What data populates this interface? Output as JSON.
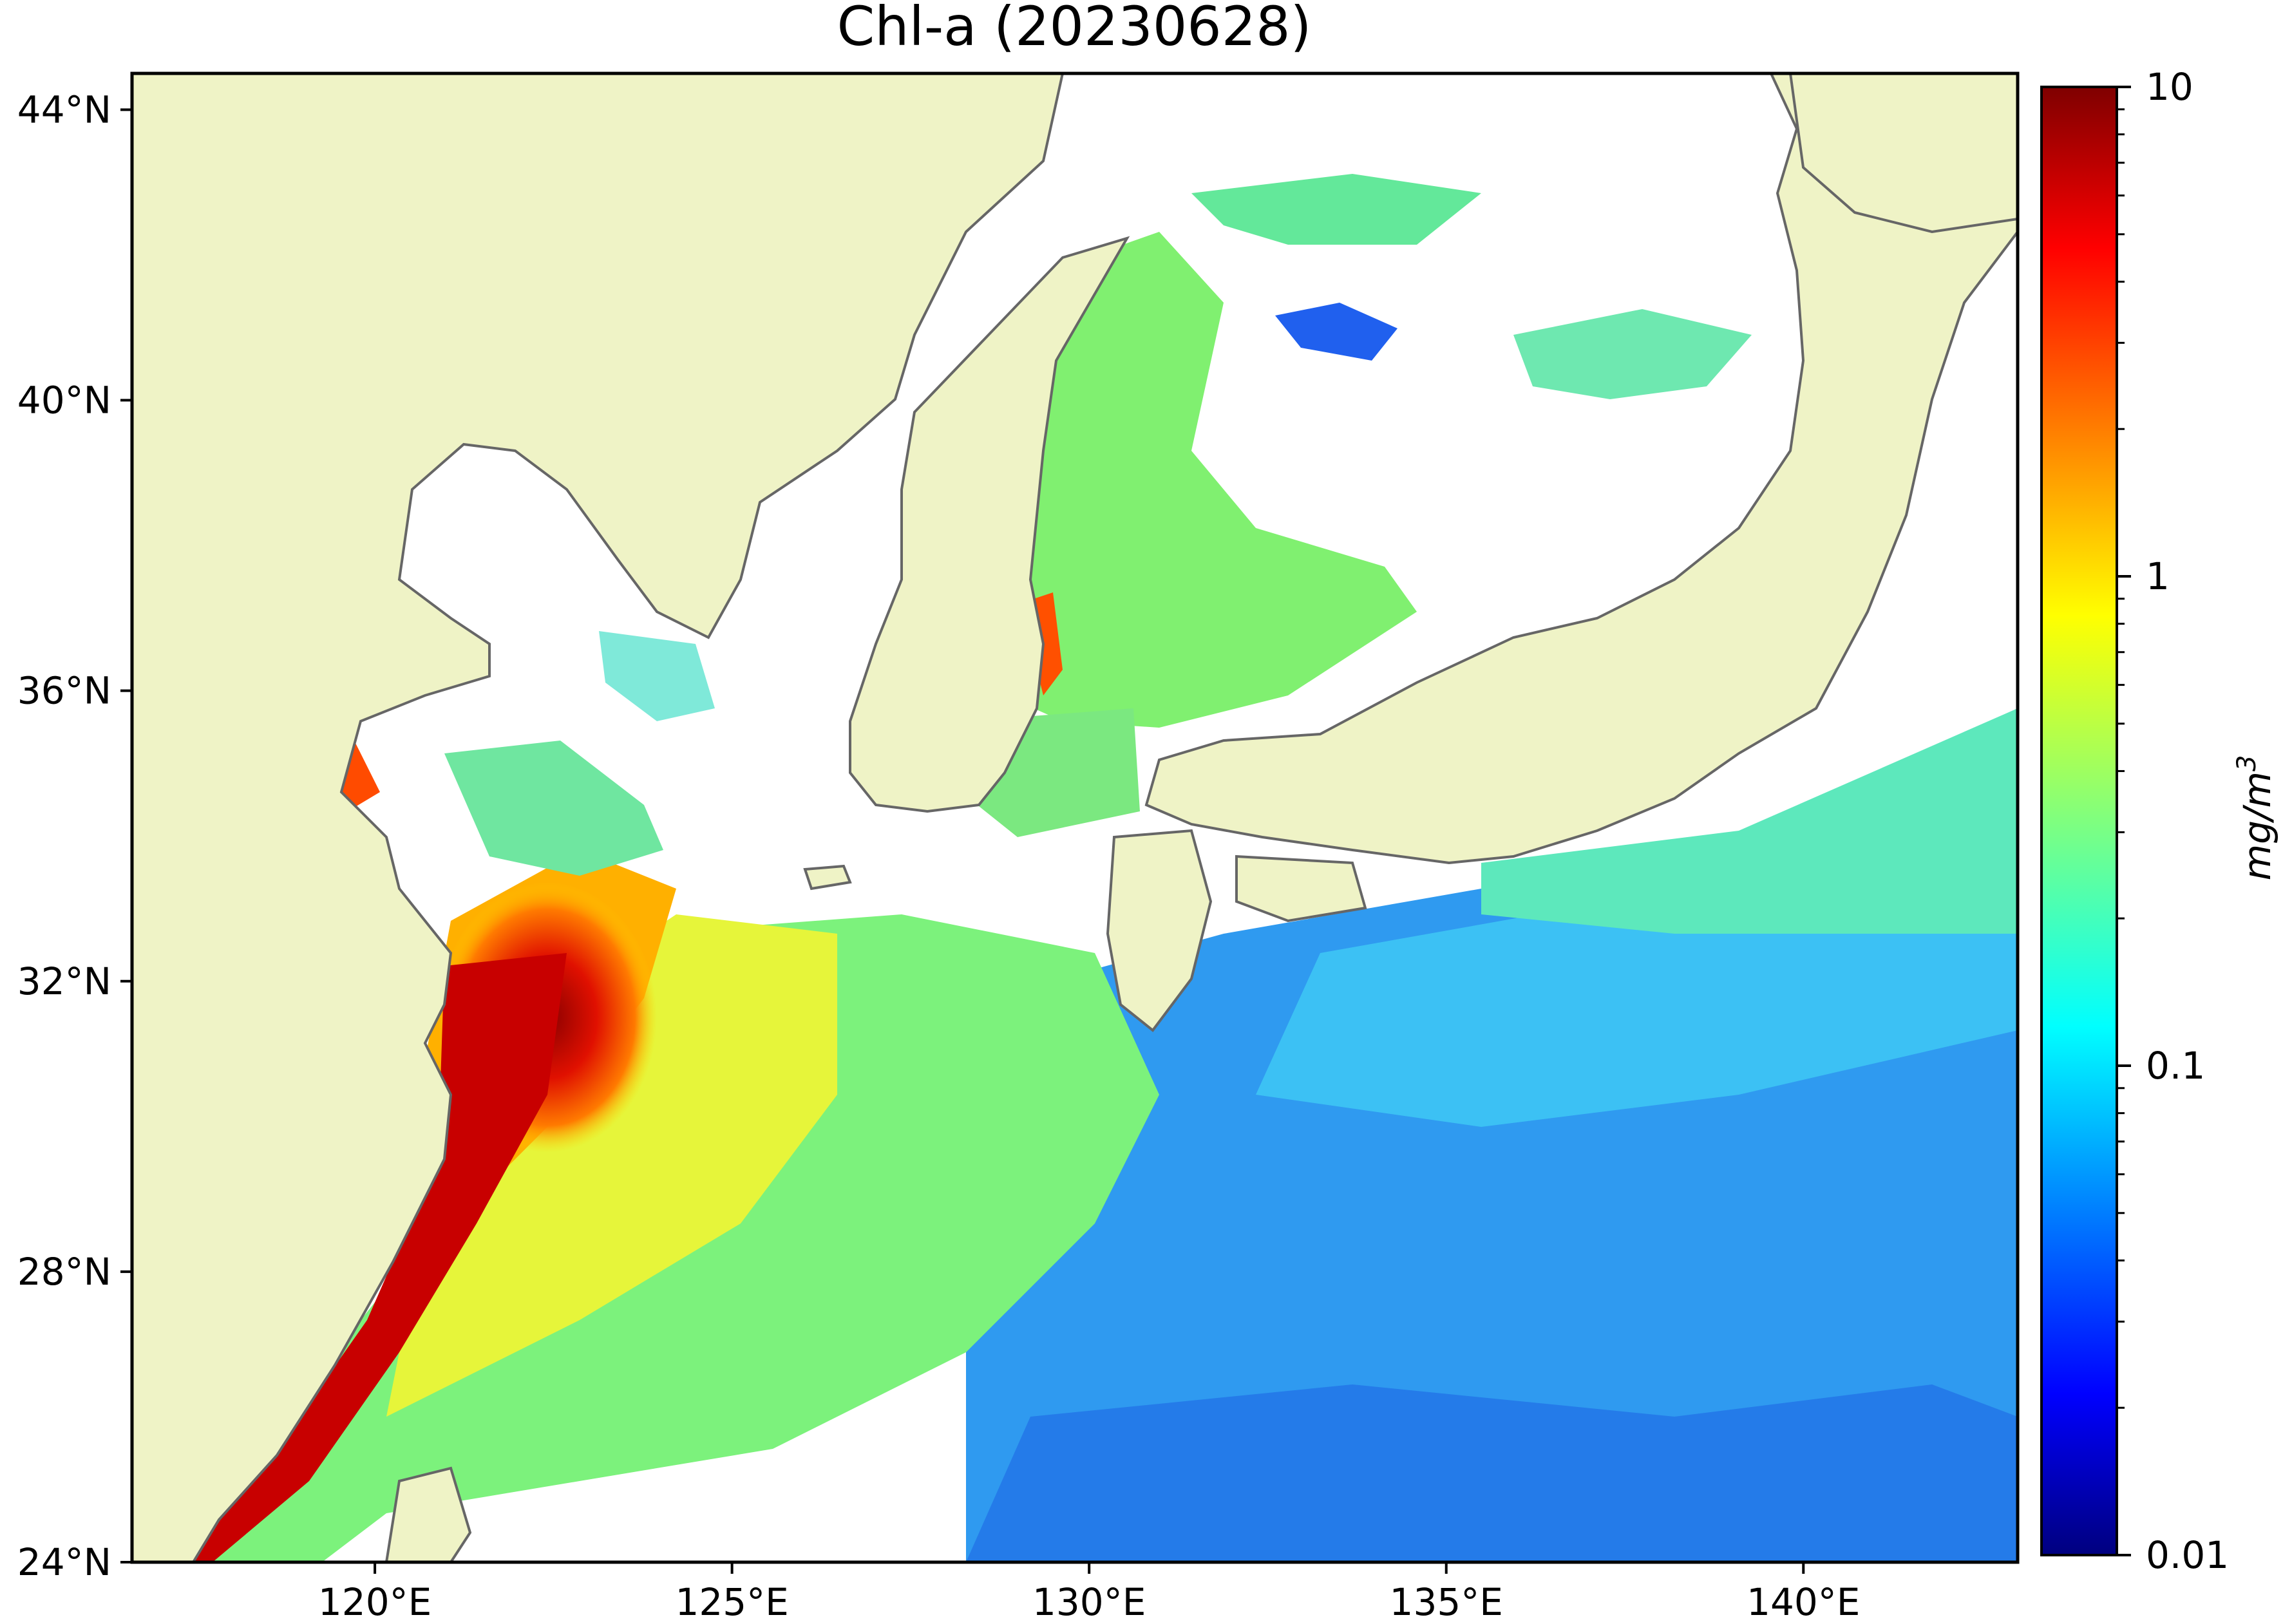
{
  "title": "Chl-a (20230628)",
  "map": {
    "lon_range": [
      116.6,
      143.0
    ],
    "lat_range": [
      24.0,
      44.5
    ],
    "lon_ticks": [
      {
        "value": 120,
        "label": "120°E"
      },
      {
        "value": 125,
        "label": "125°E"
      },
      {
        "value": 130,
        "label": "130°E"
      },
      {
        "value": 135,
        "label": "135°E"
      },
      {
        "value": 140,
        "label": "140°E"
      }
    ],
    "lat_ticks": [
      {
        "value": 24,
        "label": "24°N"
      },
      {
        "value": 28,
        "label": "28°N"
      },
      {
        "value": 32,
        "label": "32°N"
      },
      {
        "value": 36,
        "label": "36°N"
      },
      {
        "value": 40,
        "label": "40°N"
      },
      {
        "value": 44,
        "label": "44°N"
      }
    ],
    "colors": {
      "land": "#eff3c6",
      "no_data": "#ffffff",
      "coastline": "#666666"
    }
  },
  "colorbar": {
    "scale": "log",
    "range": [
      0.01,
      10
    ],
    "ticks": [
      {
        "value": 0.01,
        "label": "0.01"
      },
      {
        "value": 0.1,
        "label": "0.1"
      },
      {
        "value": 1,
        "label": "1"
      },
      {
        "value": 10,
        "label": "10"
      }
    ],
    "label": "mg/m",
    "label_superscript": "3",
    "colormap": "jet"
  }
}
